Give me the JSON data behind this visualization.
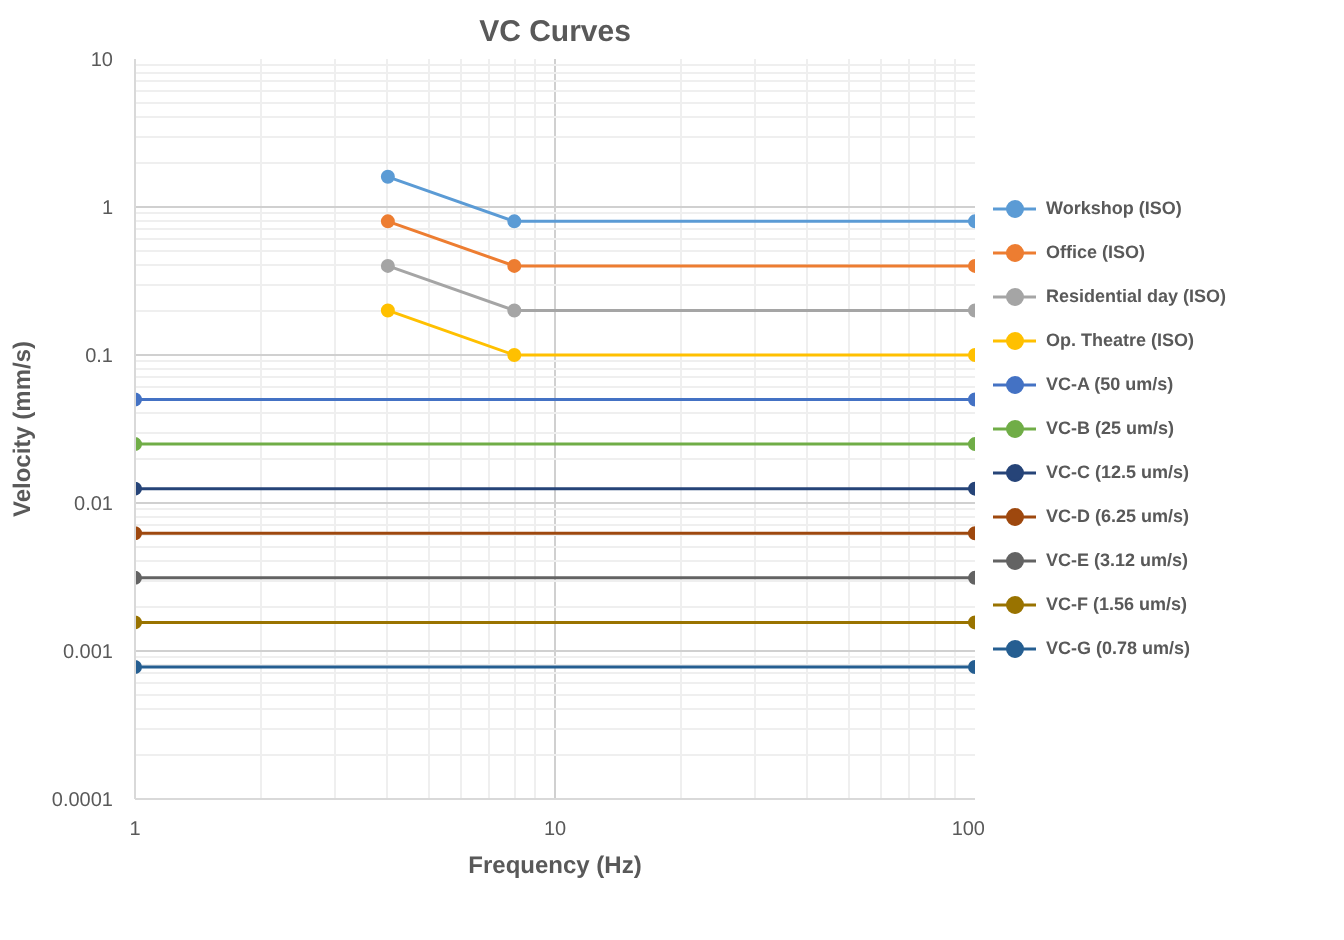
{
  "chart_data": {
    "type": "line",
    "title": "VC Curves",
    "xlabel": "Frequency (Hz)",
    "ylabel": "Velocity (mm/s)",
    "log": "xy",
    "xlim": [
      1,
      100
    ],
    "ylim": [
      0.0001,
      10
    ],
    "xticks": [
      1,
      10,
      100
    ],
    "yticks": [
      0.0001,
      0.001,
      0.01,
      0.1,
      1,
      10
    ],
    "grid": true,
    "legend": "right",
    "marker": "circle",
    "line_style": "solid",
    "series": [
      {
        "name": "Workshop (ISO)",
        "color": "#5b9bd5",
        "x": [
          4,
          8,
          100
        ],
        "values": [
          1.6,
          0.8,
          0.8
        ]
      },
      {
        "name": "Office (ISO)",
        "color": "#ed7d31",
        "x": [
          4,
          8,
          100
        ],
        "values": [
          0.8,
          0.4,
          0.4
        ]
      },
      {
        "name": "Residential day (ISO)",
        "color": "#a5a5a5",
        "x": [
          4,
          8,
          100
        ],
        "values": [
          0.4,
          0.2,
          0.2
        ]
      },
      {
        "name": "Op. Theatre (ISO)",
        "color": "#ffc000",
        "x": [
          4,
          8,
          100
        ],
        "values": [
          0.2,
          0.1,
          0.1
        ]
      },
      {
        "name": "VC-A (50 um/s)",
        "color": "#4472c4",
        "x": [
          1,
          100
        ],
        "values": [
          0.05,
          0.05
        ]
      },
      {
        "name": "VC-B (25 um/s)",
        "color": "#70ad47",
        "x": [
          1,
          100
        ],
        "values": [
          0.025,
          0.025
        ]
      },
      {
        "name": "VC-C (12.5 um/s)",
        "color": "#264478",
        "x": [
          1,
          100
        ],
        "values": [
          0.0125,
          0.0125
        ]
      },
      {
        "name": "VC-D (6.25 um/s)",
        "color": "#9e480e",
        "x": [
          1,
          100
        ],
        "values": [
          0.00625,
          0.00625
        ]
      },
      {
        "name": "VC-E (3.12 um/s)",
        "color": "#636363",
        "x": [
          1,
          100
        ],
        "values": [
          0.00312,
          0.00312
        ]
      },
      {
        "name": "VC-F (1.56 um/s)",
        "color": "#997300",
        "x": [
          1,
          100
        ],
        "values": [
          0.00156,
          0.00156
        ]
      },
      {
        "name": "VC-G (0.78 um/s)",
        "color": "#255e91",
        "x": [
          1,
          100
        ],
        "values": [
          0.00078,
          0.00078
        ]
      }
    ]
  }
}
